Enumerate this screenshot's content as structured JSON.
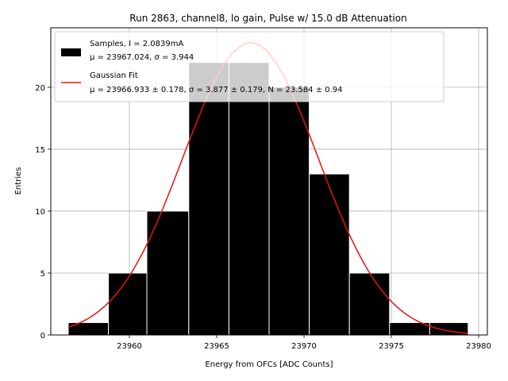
{
  "chart_data": {
    "type": "bar",
    "title": "Run 2863, channel8, lo gain, Pulse w/ 15.0 dB Attenuation",
    "xlabel": "Energy from OFCs [ADC Counts]",
    "ylabel": "Entries",
    "xlim": [
      23955.5,
      23980.5
    ],
    "ylim": [
      0,
      24.8
    ],
    "xticks": [
      23960,
      23965,
      23970,
      23975,
      23980
    ],
    "yticks": [
      0,
      5,
      10,
      15,
      20
    ],
    "grid": true,
    "legend_position": "top-left",
    "bin_edges": [
      23956.5,
      23958.8,
      23961.0,
      23963.4,
      23965.7,
      23968.0,
      23970.3,
      23972.6,
      23974.9,
      23977.2,
      23979.4
    ],
    "counts": [
      1,
      5,
      10,
      22,
      22,
      20,
      13,
      5,
      1,
      1
    ],
    "bar_color": "#000000",
    "series": [
      {
        "name": "Samples, I = 2.0839mA",
        "stats_label": "μ = 23967.024, σ = 3.944",
        "kind": "histogram",
        "color": "#000000"
      },
      {
        "name": "Gaussian Fit",
        "stats_label": "μ = 23966.933 ± 0.178, σ = 3.877 ± 0.179, N = 23.584 ± 0.94",
        "kind": "line",
        "color": "#e8120c",
        "mu": 23966.933,
        "sigma": 3.877,
        "N": 23.584,
        "x_range": [
          23956.5,
          23979.4
        ]
      }
    ]
  }
}
